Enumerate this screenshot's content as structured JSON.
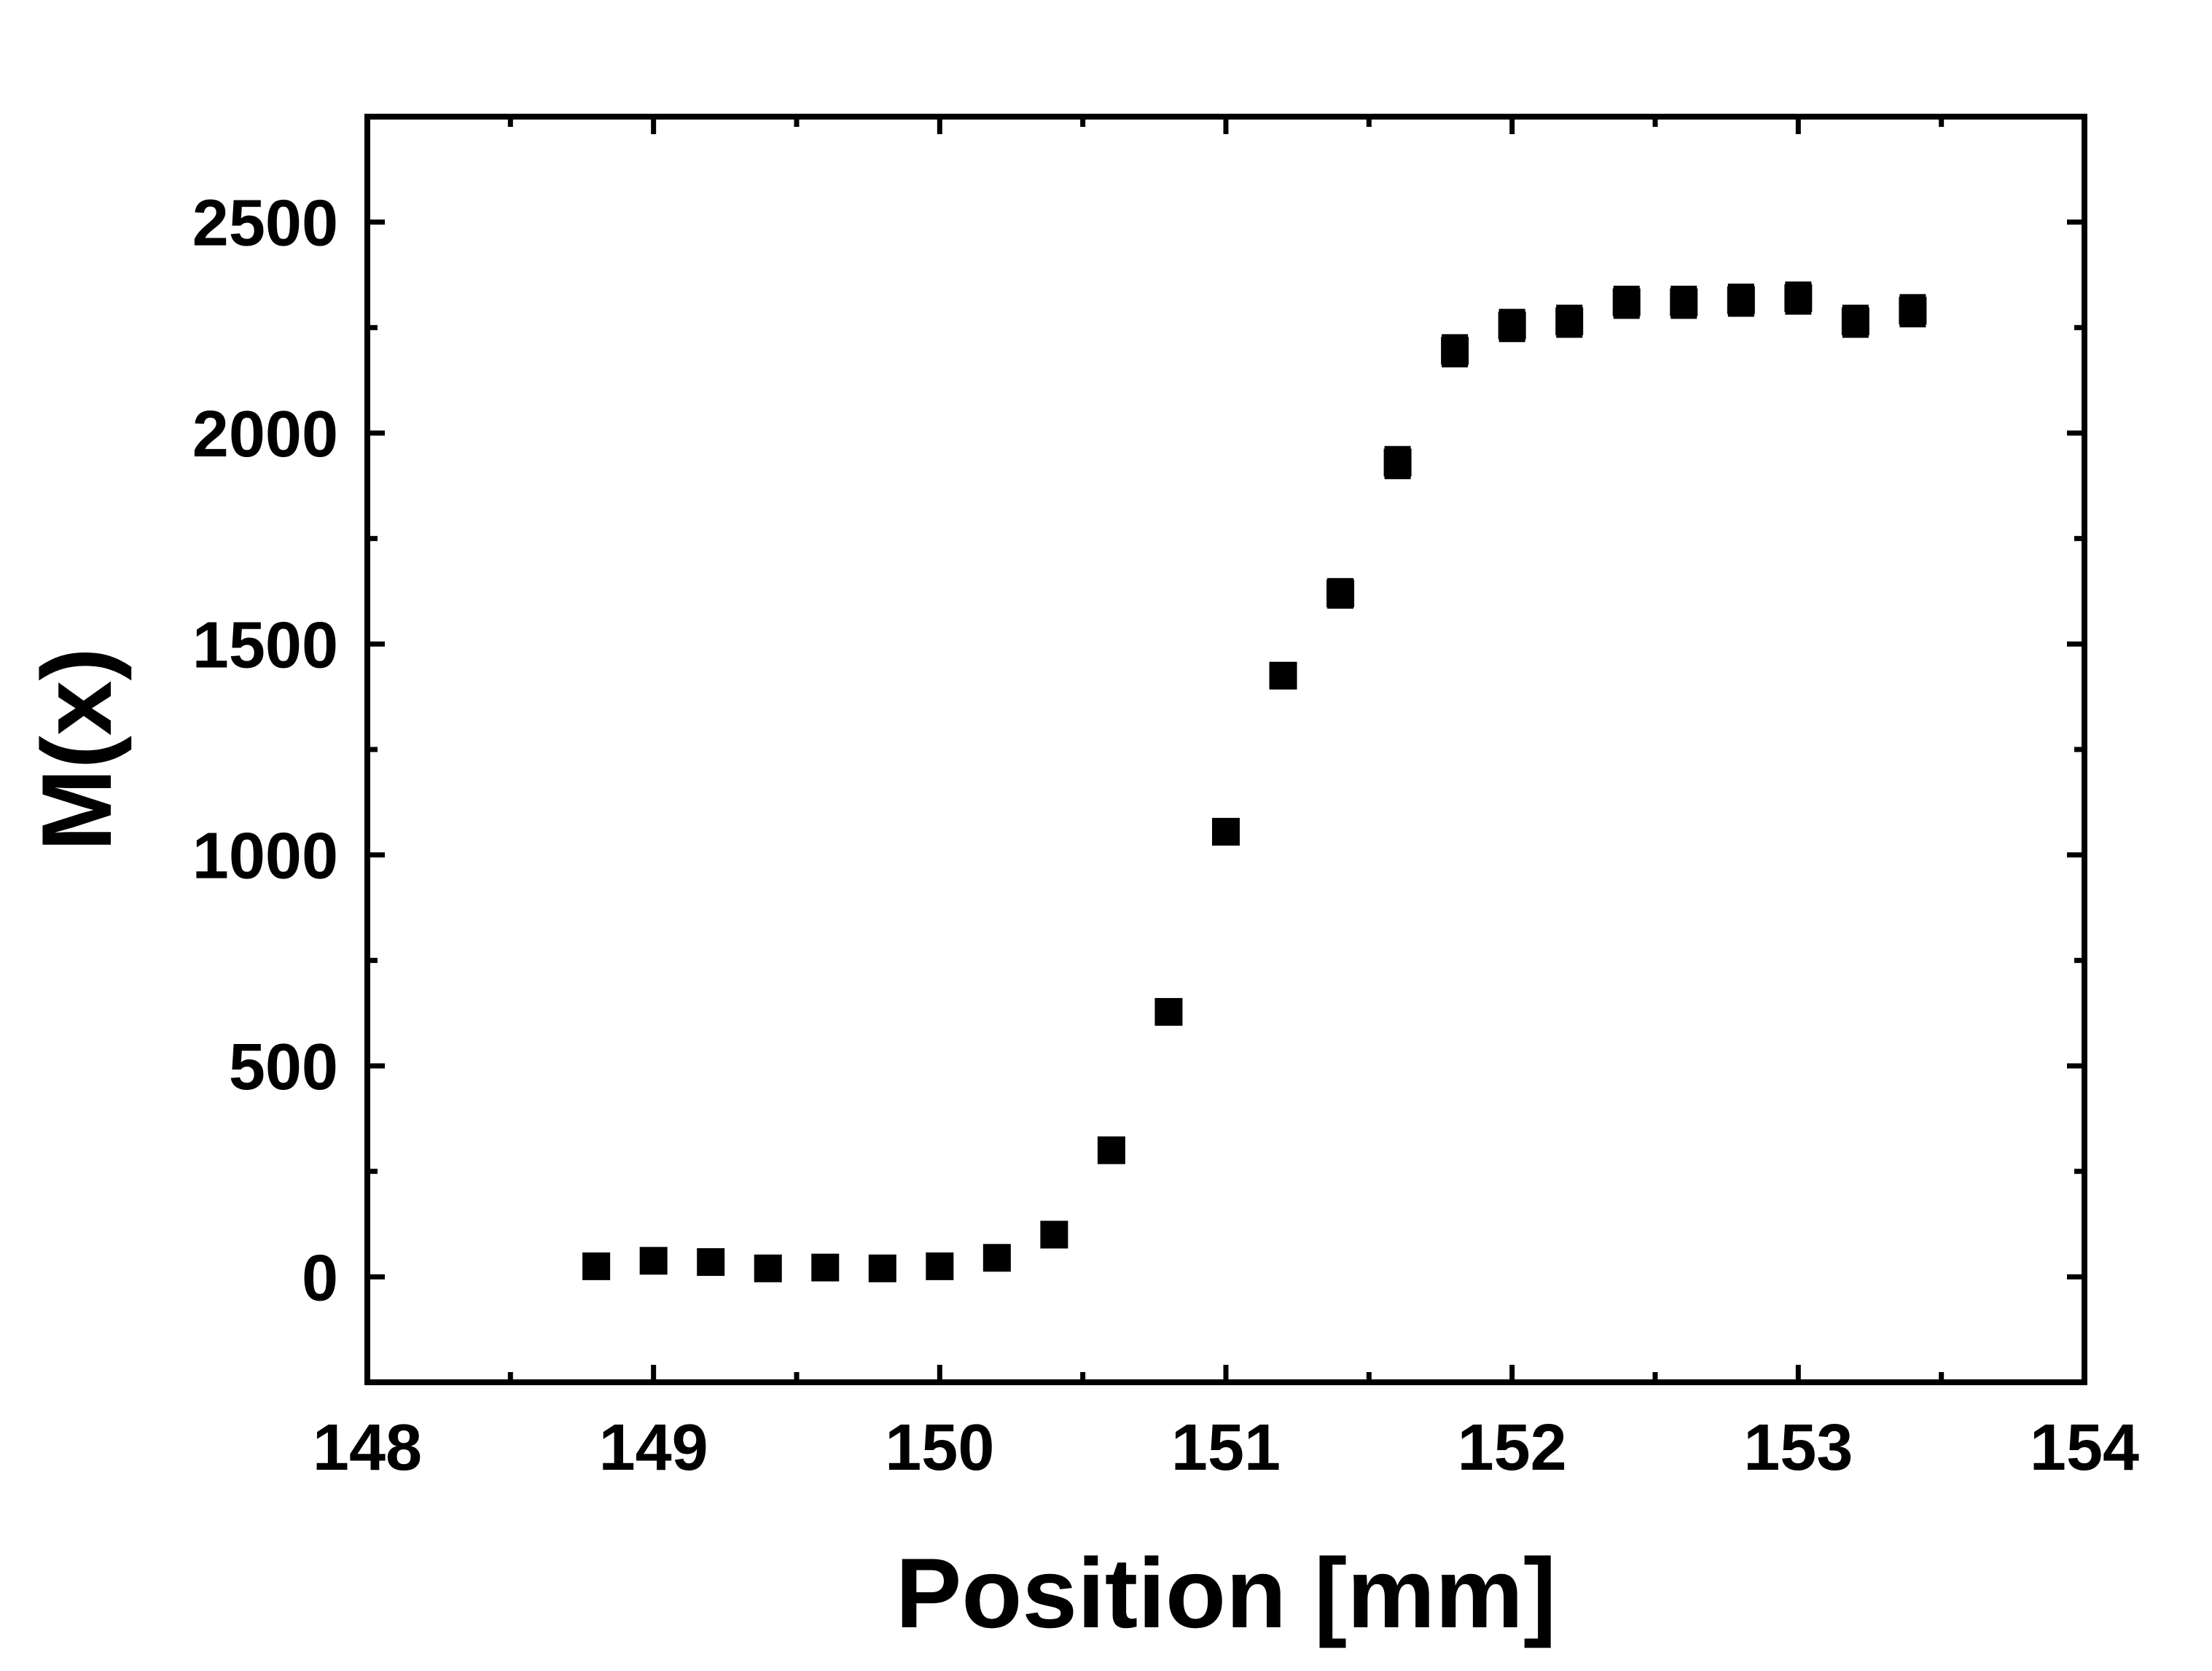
{
  "chart_data": {
    "type": "scatter",
    "title": "",
    "xlabel": "Position [mm]",
    "ylabel": "M(x)",
    "xlim": [
      148,
      154
    ],
    "ylim": [
      -250,
      2750
    ],
    "x_ticks": [
      "148",
      "149",
      "150",
      "151",
      "152",
      "153",
      "154"
    ],
    "y_ticks": [
      "0",
      "500",
      "1000",
      "1500",
      "2000",
      "2500"
    ],
    "grid": false,
    "legend": "none",
    "marker": "square",
    "marker_color": "#000000",
    "series": [
      {
        "name": "",
        "x": [
          148.8,
          149.0,
          149.2,
          149.4,
          149.6,
          149.8,
          150.0,
          150.2,
          150.4,
          150.6,
          150.8,
          151.0,
          151.2,
          151.4,
          151.6,
          151.8,
          152.0,
          152.2,
          152.4,
          152.6,
          152.8,
          153.0,
          153.2,
          153.4
        ],
        "y": [
          25,
          38,
          35,
          20,
          22,
          20,
          25,
          45,
          100,
          300,
          628,
          1055,
          1425,
          1620,
          1930,
          2195,
          2255,
          2265,
          2310,
          2310,
          2315,
          2320,
          2265,
          2290
        ],
        "yerr": [
          12,
          12,
          12,
          12,
          12,
          12,
          12,
          15,
          18,
          20,
          22,
          25,
          28,
          32,
          35,
          35,
          35,
          35,
          35,
          35,
          35,
          35,
          35,
          35
        ]
      }
    ]
  }
}
